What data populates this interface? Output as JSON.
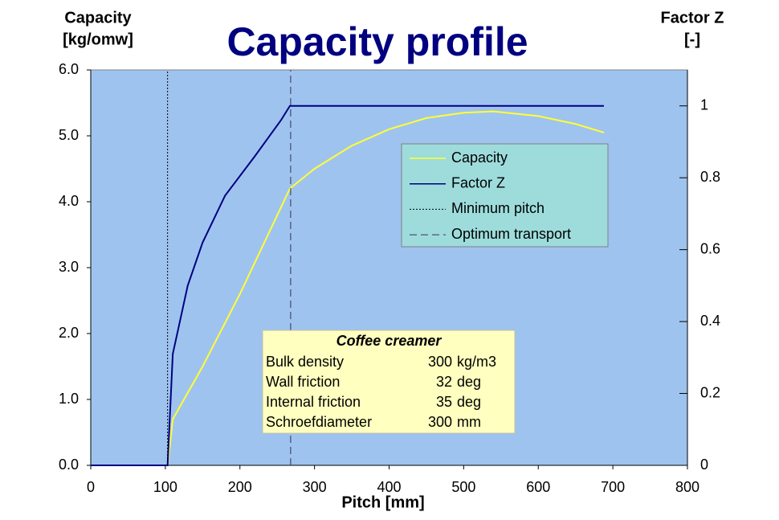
{
  "chart_data": {
    "type": "line",
    "title": "Capacity profile",
    "ylabel": [
      "Capacity",
      "[kg/omw]"
    ],
    "y2label": [
      "Factor Z",
      "[-]"
    ],
    "xlabel": "Pitch [mm]",
    "xlim": [
      0,
      800
    ],
    "xticks": [
      0,
      100,
      200,
      300,
      400,
      500,
      600,
      700,
      800
    ],
    "ylim": [
      0,
      6
    ],
    "yticks": [
      {
        "value": 0,
        "label": "0.0"
      },
      {
        "value": 1,
        "label": "1.0"
      },
      {
        "value": 2,
        "label": "2.0"
      },
      {
        "value": 3,
        "label": "3.0"
      },
      {
        "value": 4,
        "label": "4.0"
      },
      {
        "value": 5,
        "label": "5.0"
      },
      {
        "value": 6,
        "label": "6.0"
      }
    ],
    "y2lim": [
      0,
      1.1
    ],
    "y2ticks": [
      0,
      0.2,
      0.4,
      0.6,
      0.8,
      1
    ],
    "series": [
      {
        "name": "Capacity",
        "color": "#ffff33",
        "x": [
          0,
          103,
          110,
          150,
          200,
          267,
          300,
          350,
          400,
          450,
          500,
          540,
          600,
          650,
          688
        ],
        "values": [
          0,
          0,
          0.7,
          1.5,
          2.6,
          4.2,
          4.5,
          4.85,
          5.1,
          5.27,
          5.35,
          5.37,
          5.3,
          5.18,
          5.05
        ]
      },
      {
        "name": "Factor Z",
        "color": "#000080",
        "axis": "y2",
        "x": [
          0,
          103,
          110,
          130,
          150,
          180,
          220,
          255,
          267,
          688
        ],
        "values": [
          0,
          0,
          0.31,
          0.5,
          0.62,
          0.75,
          0.86,
          0.96,
          1,
          1
        ]
      },
      {
        "name": "Minimum pitch",
        "color": "#000000",
        "dash": "2,2",
        "x": [
          103,
          103
        ],
        "values": [
          0,
          6
        ]
      },
      {
        "name": "Optimum transport",
        "color": "#333355",
        "dash": "9,5",
        "x": [
          268,
          268
        ],
        "values": [
          0,
          6
        ]
      }
    ],
    "info_box": {
      "title": "Coffee creamer",
      "rows": [
        [
          "Bulk density",
          300,
          "kg/m3"
        ],
        [
          "Wall friction",
          32,
          "deg"
        ],
        [
          "Internal friction",
          35,
          "deg"
        ],
        [
          "Schroefdiameter",
          300,
          "mm"
        ]
      ]
    }
  }
}
